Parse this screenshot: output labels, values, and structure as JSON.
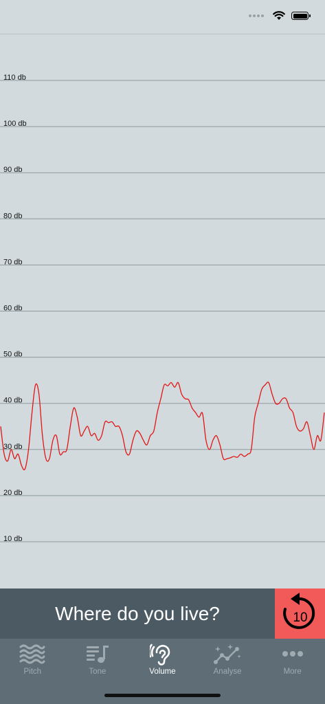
{
  "status_bar": {
    "icons": [
      "signal-dots-icon",
      "wifi-icon",
      "battery-icon"
    ]
  },
  "chart_data": {
    "type": "line",
    "title": "",
    "xlabel": "",
    "ylabel": "",
    "ylim": [
      0,
      120
    ],
    "yticks": [
      "10 db",
      "20 db",
      "30 db",
      "40 db",
      "50 db",
      "60 db",
      "70 db",
      "80 db",
      "90 db",
      "100 db",
      "110 db"
    ],
    "grid": true,
    "line_color": "#e31414",
    "series": [
      {
        "values": [
          35,
          29,
          27.5,
          30,
          28,
          29,
          26.5,
          25.8,
          30,
          38,
          44,
          42,
          33,
          28,
          28,
          32,
          33,
          29,
          29.5,
          30,
          35,
          39,
          37,
          33,
          34,
          35,
          33,
          33.5,
          32,
          33,
          36,
          35.8,
          36,
          35,
          35,
          33,
          29.5,
          29,
          32,
          34,
          33.5,
          32,
          31,
          33,
          34,
          38,
          41,
          44,
          43.8,
          44.5,
          43.5,
          44.5,
          42,
          41,
          40.8,
          39,
          38,
          37,
          37.8,
          32,
          30,
          32,
          33,
          31,
          28,
          28,
          28.2,
          28.5,
          28.3,
          29,
          28.5,
          29,
          30,
          37,
          40,
          43,
          44,
          44.5,
          42,
          40,
          40,
          41,
          41,
          39,
          38,
          35,
          34,
          34.5,
          36,
          33,
          30,
          33,
          32,
          38
        ]
      }
    ]
  },
  "question_bar": {
    "question": "Where do you live?",
    "replay_label": "10",
    "icon": "replay-10-icon"
  },
  "tabs": [
    {
      "label": "Pitch",
      "icon": "waves-icon",
      "active": false
    },
    {
      "label": "Tone",
      "icon": "music-notes-icon",
      "active": false
    },
    {
      "label": "Volume",
      "icon": "ear-icon",
      "active": true
    },
    {
      "label": "Analyse",
      "icon": "chart-sparkle-icon",
      "active": false
    },
    {
      "label": "More",
      "icon": "more-dots-icon",
      "active": false
    }
  ]
}
